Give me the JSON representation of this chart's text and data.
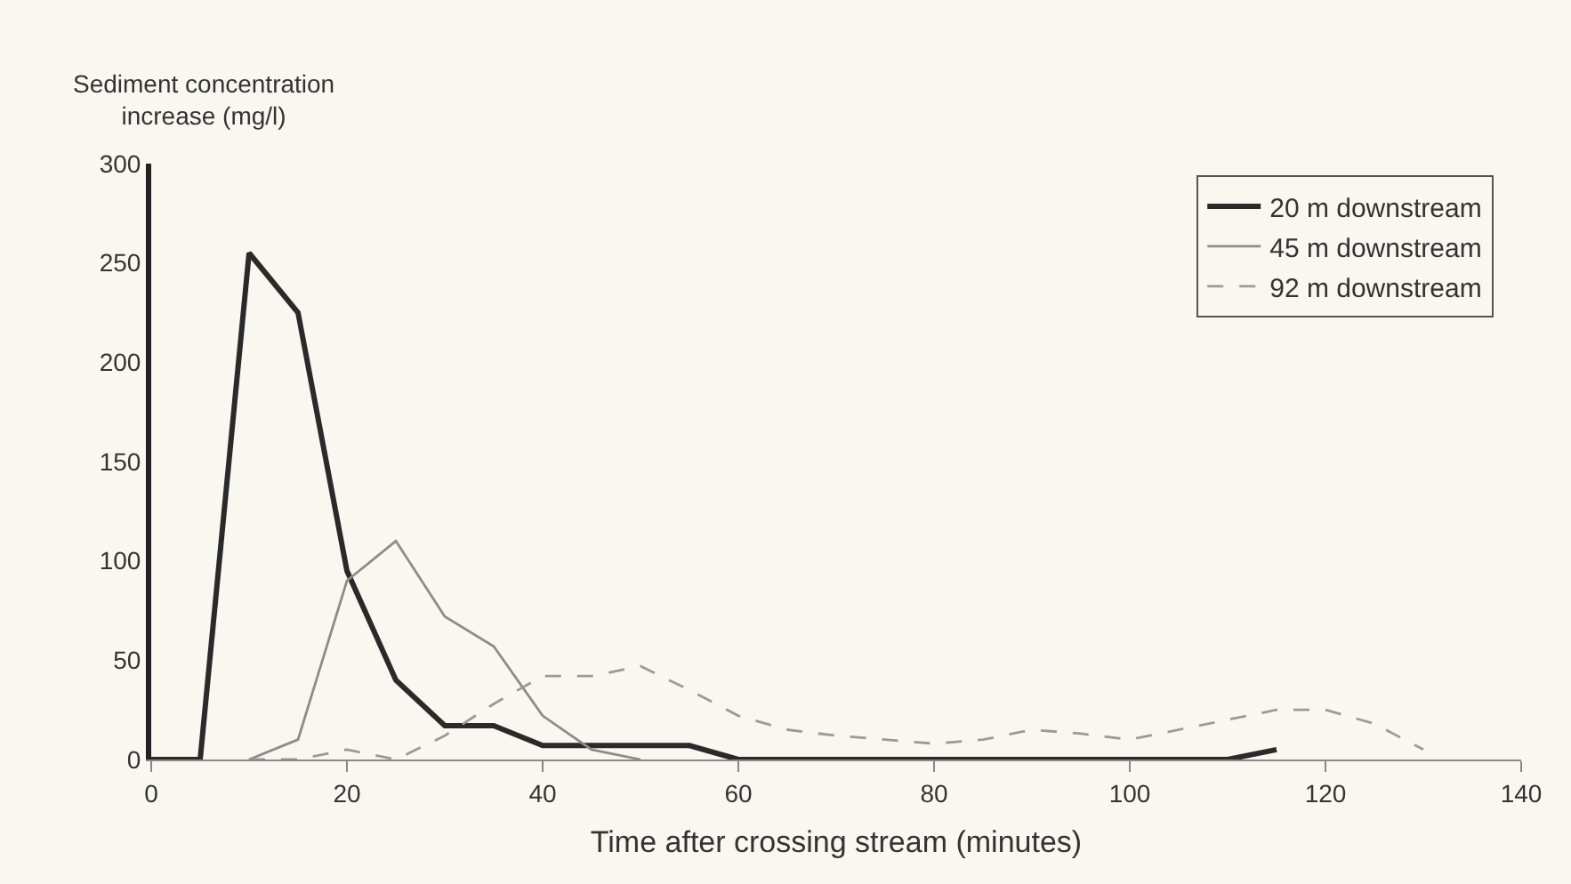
{
  "chart_data": {
    "type": "line",
    "ylabel": "Sediment concentration increase (mg/l)",
    "xlabel": "Time after crossing stream (minutes)",
    "xlim": [
      0,
      140
    ],
    "xticks": [
      0,
      20,
      40,
      60,
      80,
      100,
      120,
      140
    ],
    "ylim": [
      0,
      300
    ],
    "yticks": [
      0,
      50,
      100,
      150,
      200,
      250,
      300
    ],
    "grid": false,
    "legend": "top right",
    "marker": "none",
    "series": [
      {
        "name": "20 m downstream",
        "color": "#2a2a2a",
        "line_style": "solid",
        "x": [
          0,
          5,
          10,
          15,
          20,
          25,
          30,
          35,
          40,
          45,
          50,
          55,
          60,
          70,
          80,
          90,
          100,
          110,
          115
        ],
        "values": [
          0,
          0,
          255,
          225,
          95,
          40,
          17,
          17,
          7,
          7,
          7,
          7,
          0,
          0,
          0,
          0,
          0,
          0,
          5
        ]
      },
      {
        "name": "45 m downstream",
        "color": "#8c8c8c",
        "line_style": "solid",
        "x": [
          10,
          15,
          20,
          25,
          30,
          35,
          40,
          45,
          50
        ],
        "values": [
          0,
          10,
          90,
          110,
          72,
          57,
          22,
          5,
          0
        ]
      },
      {
        "name": "92 m downstream",
        "color": "#9a9a9a",
        "line_style": "dashed",
        "x": [
          10,
          15,
          20,
          25,
          30,
          35,
          40,
          45,
          50,
          55,
          60,
          65,
          70,
          75,
          80,
          85,
          90,
          95,
          100,
          105,
          110,
          115,
          120,
          125,
          130
        ],
        "values": [
          0,
          0,
          5,
          0,
          12,
          28,
          42,
          42,
          47,
          35,
          22,
          15,
          12,
          10,
          8,
          10,
          15,
          13,
          10,
          15,
          20,
          25,
          25,
          18,
          5
        ]
      }
    ]
  }
}
